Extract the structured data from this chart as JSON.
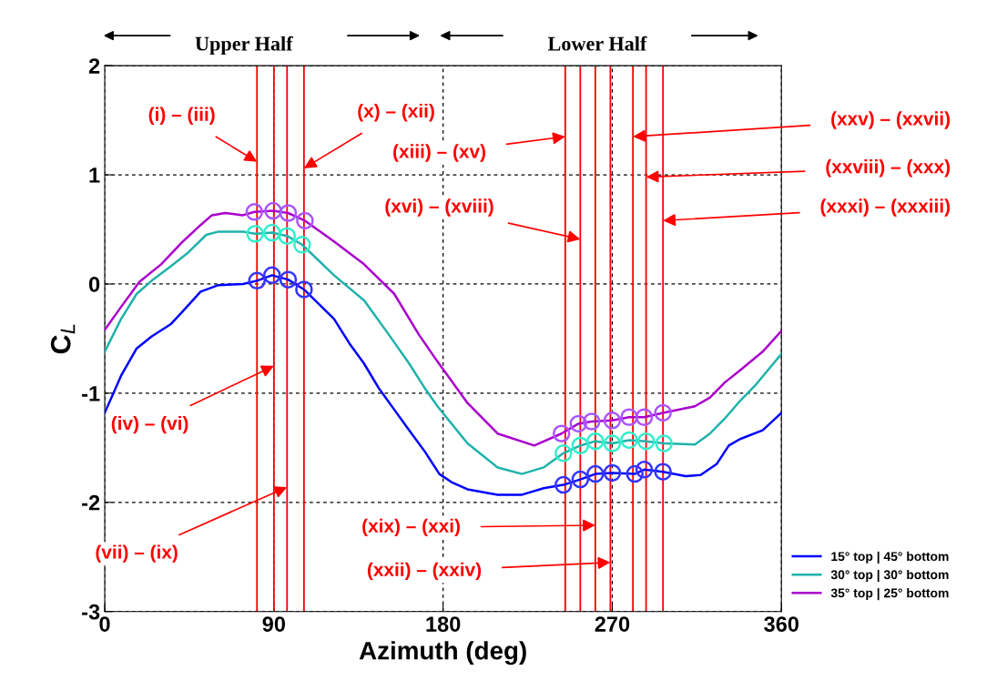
{
  "chart_data": {
    "type": "line",
    "xlabel": "Azimuth (deg)",
    "ylabel": "C$_{L}$",
    "xlim": [
      0,
      360
    ],
    "ylim": [
      -3,
      2
    ],
    "xticks": [
      0,
      90,
      180,
      270,
      360
    ],
    "yticks": [
      -3,
      -2,
      -1,
      0,
      1,
      2
    ],
    "grid": true,
    "legend": "bottom right",
    "series": [
      {
        "name": "15° top | 45° bottom",
        "color": "#0000ff",
        "x": [
          0,
          8.7,
          17,
          25,
          35,
          41,
          51,
          60.5,
          73.5,
          81,
          89,
          97.6,
          106,
          122,
          130,
          138,
          146,
          154,
          162,
          170.5,
          178,
          185,
          193,
          209,
          222,
          233.5,
          244,
          253,
          261,
          270,
          282,
          287,
          297,
          309,
          317,
          325.5,
          332,
          338,
          350,
          360
        ],
        "values": [
          -1.18,
          -0.84,
          -0.59,
          -0.48,
          -0.37,
          -0.26,
          -0.07,
          -0.01,
          0.0,
          0.03,
          0.08,
          0.04,
          -0.05,
          -0.32,
          -0.54,
          -0.73,
          -0.96,
          -1.15,
          -1.34,
          -1.54,
          -1.74,
          -1.82,
          -1.88,
          -1.93,
          -1.93,
          -1.87,
          -1.84,
          -1.79,
          -1.74,
          -1.73,
          -1.74,
          -1.7,
          -1.72,
          -1.76,
          -1.75,
          -1.65,
          -1.48,
          -1.42,
          -1.34,
          -1.18
        ]
      },
      {
        "name": "30° top | 30° bottom",
        "color": "#20b2aa",
        "x": [
          0,
          8.7,
          17,
          25,
          35,
          44.5,
          54,
          60.5,
          73.5,
          80,
          89,
          97,
          105,
          122,
          138,
          151,
          162,
          170.5,
          177,
          193,
          209,
          222,
          233.5,
          244,
          253,
          261,
          270,
          279,
          288,
          297.5,
          314,
          322,
          330,
          338,
          346,
          360
        ],
        "values": [
          -0.62,
          -0.32,
          -0.09,
          0.03,
          0.16,
          0.29,
          0.45,
          0.48,
          0.48,
          0.46,
          0.47,
          0.44,
          0.36,
          0.08,
          -0.15,
          -0.46,
          -0.73,
          -0.96,
          -1.12,
          -1.46,
          -1.68,
          -1.74,
          -1.68,
          -1.55,
          -1.48,
          -1.44,
          -1.46,
          -1.43,
          -1.44,
          -1.46,
          -1.47,
          -1.37,
          -1.23,
          -1.07,
          -0.93,
          -0.64
        ]
      },
      {
        "name": "35° top | 25° bottom",
        "color": "#aa00cc",
        "x": [
          0,
          8.7,
          18.5,
          30,
          41,
          51,
          57,
          64,
          73.5,
          79.6,
          89.6,
          97.6,
          106.5,
          122,
          138,
          154,
          167,
          177,
          193,
          209,
          228.5,
          243,
          252,
          259,
          270,
          279,
          287,
          297,
          314,
          322,
          330,
          338,
          350,
          360
        ],
        "values": [
          -0.42,
          -0.21,
          0.02,
          0.18,
          0.38,
          0.54,
          0.63,
          0.65,
          0.63,
          0.66,
          0.67,
          0.65,
          0.58,
          0.39,
          0.18,
          -0.09,
          -0.46,
          -0.71,
          -1.09,
          -1.37,
          -1.48,
          -1.37,
          -1.28,
          -1.26,
          -1.25,
          -1.22,
          -1.22,
          -1.18,
          -1.12,
          -1.04,
          -0.9,
          -0.79,
          -0.62,
          -0.43
        ]
      },
      {
        "type": "scatter",
        "marker": "circle",
        "color": "#3333ff",
        "x": [
          81,
          89,
          97.6,
          106,
          244,
          253,
          261,
          270,
          282,
          287,
          297
        ],
        "values": [
          0.03,
          0.08,
          0.04,
          -0.05,
          -1.84,
          -1.79,
          -1.74,
          -1.73,
          -1.74,
          -1.7,
          -1.72
        ]
      },
      {
        "type": "scatter",
        "marker": "circle",
        "color": "#33eecc",
        "x": [
          80,
          89,
          97,
          105,
          244,
          253,
          261,
          270,
          279,
          288,
          297.5
        ],
        "values": [
          0.46,
          0.47,
          0.44,
          0.36,
          -1.55,
          -1.48,
          -1.44,
          -1.46,
          -1.43,
          -1.44,
          -1.46
        ]
      },
      {
        "type": "scatter",
        "marker": "circle",
        "color": "#aa55ff",
        "x": [
          79.6,
          89.6,
          97.6,
          106.5,
          243,
          252,
          259,
          270,
          279,
          287,
          297
        ],
        "values": [
          0.66,
          0.67,
          0.65,
          0.58,
          -1.37,
          -1.28,
          -1.26,
          -1.25,
          -1.22,
          -1.22,
          -1.18
        ]
      }
    ],
    "ref_lines": [
      {
        "axis": "x",
        "value": 81,
        "color": "#ff0000"
      },
      {
        "axis": "x",
        "value": 90,
        "color": "#ff0000"
      },
      {
        "axis": "x",
        "value": 97,
        "color": "#ff0000"
      },
      {
        "axis": "x",
        "value": 106,
        "color": "#ff0000"
      },
      {
        "axis": "x",
        "value": 245,
        "color": "#ff0000"
      },
      {
        "axis": "x",
        "value": 253,
        "color": "#ff0000"
      },
      {
        "axis": "x",
        "value": 261,
        "color": "#ff0000"
      },
      {
        "axis": "x",
        "value": 269,
        "color": "#ff0000"
      },
      {
        "axis": "x",
        "value": 281,
        "color": "#ff0000"
      },
      {
        "axis": "x",
        "value": 288,
        "color": "#ff0000"
      },
      {
        "axis": "x",
        "value": 297,
        "color": "#ff0000"
      }
    ],
    "annotations": [
      "Upper Half",
      "Lower Half",
      {
        "text": "(i) – (iii)",
        "x": 81,
        "y": 1.12
      },
      {
        "text": "(x) – (xii)",
        "x": 106,
        "y": 1.06
      },
      {
        "text": "(xiii) – (xv)",
        "x": 245,
        "y": 1.35
      },
      {
        "text": "(xvi) – (xviii)",
        "x": 253,
        "y": 0.41
      },
      {
        "text": "(xxv) – (xxvii)",
        "x": 281,
        "y": 1.35
      },
      {
        "text": "(xxviii) – (xxx)",
        "x": 288,
        "y": 0.98
      },
      {
        "text": "(xxxi) – (xxxiii)",
        "x": 297,
        "y": 0.58
      },
      {
        "text": "(iv) – (vi)",
        "x": 90,
        "y": -0.75
      },
      {
        "text": "(vii) – (ix)",
        "x": 97,
        "y": -1.86
      },
      {
        "text": "(xix) – (xxi)",
        "x": 261,
        "y": -2.21
      },
      {
        "text": "(xxii) – (xxiv)",
        "x": 269,
        "y": -2.55
      }
    ]
  }
}
